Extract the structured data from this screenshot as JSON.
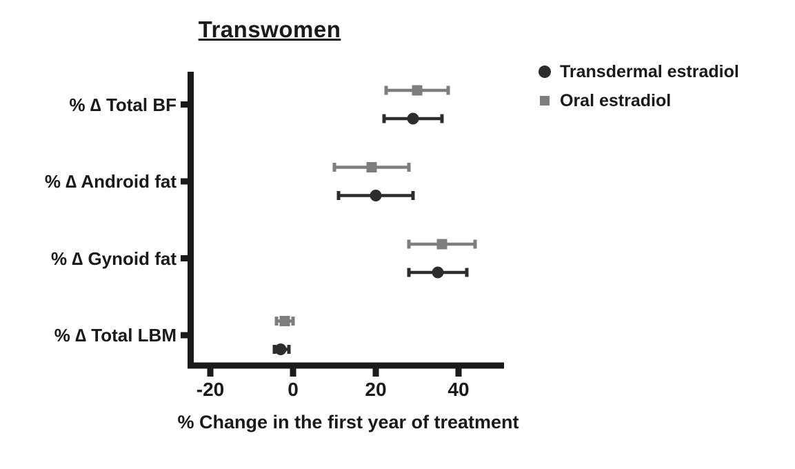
{
  "title": "Transwomen",
  "chart_data": {
    "type": "scatter",
    "subtype": "horizontal dot plot with error bars (forest style)",
    "title": "Transwomen",
    "xlabel": "% Change in the first year of treatment",
    "categories": [
      "% ∆ Total BF",
      "% ∆ Android fat",
      "% ∆ Gynoid fat",
      "% ∆ Total LBM"
    ],
    "x_axis": {
      "ticks": [
        -20,
        0,
        20,
        40
      ],
      "range": [
        -25.5,
        51
      ]
    },
    "axis_color": "#1a1a1a",
    "grid": false,
    "legend_position": "top-right",
    "series": [
      {
        "name": "Transdermal estradiol",
        "marker": "circle",
        "color": "#2d2d2d",
        "values": [
          29,
          20,
          35,
          -3
        ],
        "ci_low": [
          22,
          11,
          28,
          -4.5
        ],
        "ci_high": [
          36,
          29,
          42,
          -1
        ]
      },
      {
        "name": "Oral estradiol",
        "marker": "square",
        "color": "#7e7e7e",
        "values": [
          30,
          19,
          36,
          -2
        ],
        "ci_low": [
          22.5,
          10,
          28,
          -4
        ],
        "ci_high": [
          37.5,
          28,
          44,
          0
        ]
      }
    ]
  }
}
